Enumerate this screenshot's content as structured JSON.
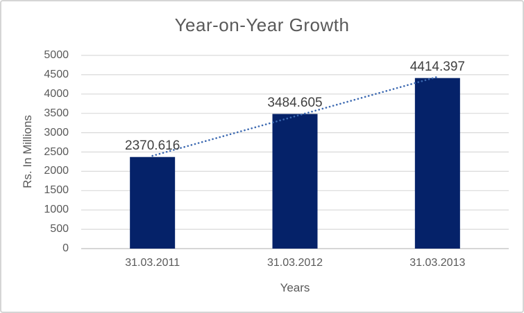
{
  "window": {
    "background_color": "#ffffff",
    "border_color": "#d5d5d5"
  },
  "chart_data": {
    "type": "bar",
    "title": "Year-on-Year Growth",
    "categories": [
      "31.03.2011",
      "31.03.2012",
      "31.03.2013"
    ],
    "values": [
      2370.616,
      3484.605,
      4414.397
    ],
    "data_labels": [
      "2370.616",
      "3484.605",
      "4414.397"
    ],
    "xlabel": "Years",
    "ylabel": "Rs. In Millions",
    "ylim": [
      0,
      5000
    ],
    "ytick_interval": 500,
    "yticks": [
      0,
      500,
      1000,
      1500,
      2000,
      2500,
      3000,
      3500,
      4000,
      4500,
      5000
    ],
    "grid": true,
    "legend_position": "none",
    "bar_color": "#052269",
    "trendline": {
      "type": "linear",
      "style": "dotted",
      "color": "#3c69b1"
    },
    "gridline_color": "#d9d9d9",
    "axis_line_color": "#c9c9c9",
    "title_color": "#595959",
    "tick_label_color": "#595959",
    "data_label_color": "#404040"
  }
}
